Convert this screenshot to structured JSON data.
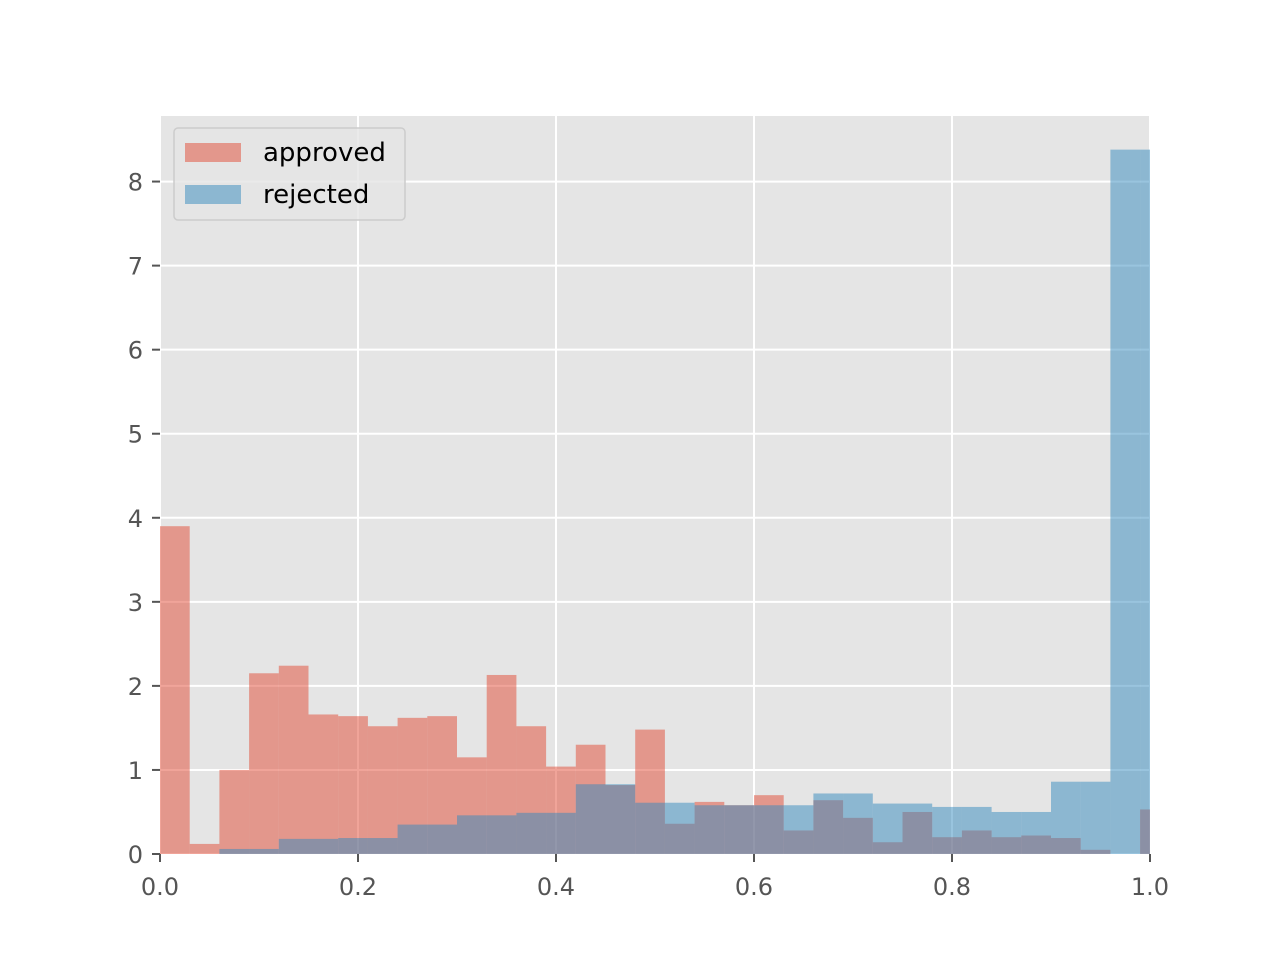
{
  "chart_data": {
    "type": "histogram",
    "title": "",
    "xlabel": "",
    "ylabel": "",
    "xlim": [
      0,
      1
    ],
    "ylim": [
      0,
      8.78
    ],
    "grid": true,
    "legend_position": "upper-left",
    "bin_width": 0.03,
    "bin_starts": [
      0.0,
      0.03,
      0.06,
      0.09,
      0.12,
      0.15,
      0.18,
      0.21,
      0.24,
      0.27,
      0.3,
      0.33,
      0.36,
      0.39,
      0.42,
      0.45,
      0.48,
      0.51,
      0.54,
      0.57,
      0.6,
      0.63,
      0.66,
      0.69,
      0.72,
      0.75,
      0.78,
      0.81,
      0.84,
      0.87,
      0.9,
      0.93,
      0.96,
      0.99
    ],
    "xticks": [
      "0.0",
      "0.2",
      "0.4",
      "0.6",
      "0.8",
      "1.0"
    ],
    "xtick_values": [
      0,
      0.2,
      0.4,
      0.6,
      0.8,
      1.0
    ],
    "yticks": [
      "0",
      "1",
      "2",
      "3",
      "4",
      "5",
      "6",
      "7",
      "8"
    ],
    "ytick_values": [
      0,
      1,
      2,
      3,
      4,
      5,
      6,
      7,
      8
    ],
    "series": [
      {
        "name": "approved",
        "color": "#E24A33",
        "values": [
          3.9,
          0.12,
          1.0,
          2.15,
          2.24,
          1.66,
          1.64,
          1.52,
          1.62,
          1.64,
          1.15,
          2.13,
          1.52,
          1.04,
          1.3,
          0.82,
          1.48,
          0.36,
          0.62,
          0.58,
          0.7,
          0.28,
          0.64,
          0.43,
          0.14,
          0.5,
          0.2,
          0.28,
          0.2,
          0.22,
          0.19,
          0.05,
          0.0,
          0.53
        ]
      },
      {
        "name": "rejected",
        "color": "#348ABD",
        "values": [
          0.0,
          0.0,
          0.06,
          0.06,
          0.18,
          0.18,
          0.19,
          0.19,
          0.35,
          0.35,
          0.46,
          0.46,
          0.49,
          0.49,
          0.83,
          0.83,
          0.61,
          0.61,
          0.58,
          0.58,
          0.58,
          0.58,
          0.72,
          0.72,
          0.6,
          0.6,
          0.56,
          0.56,
          0.5,
          0.5,
          0.86,
          0.86,
          8.38,
          8.38
        ]
      }
    ]
  }
}
